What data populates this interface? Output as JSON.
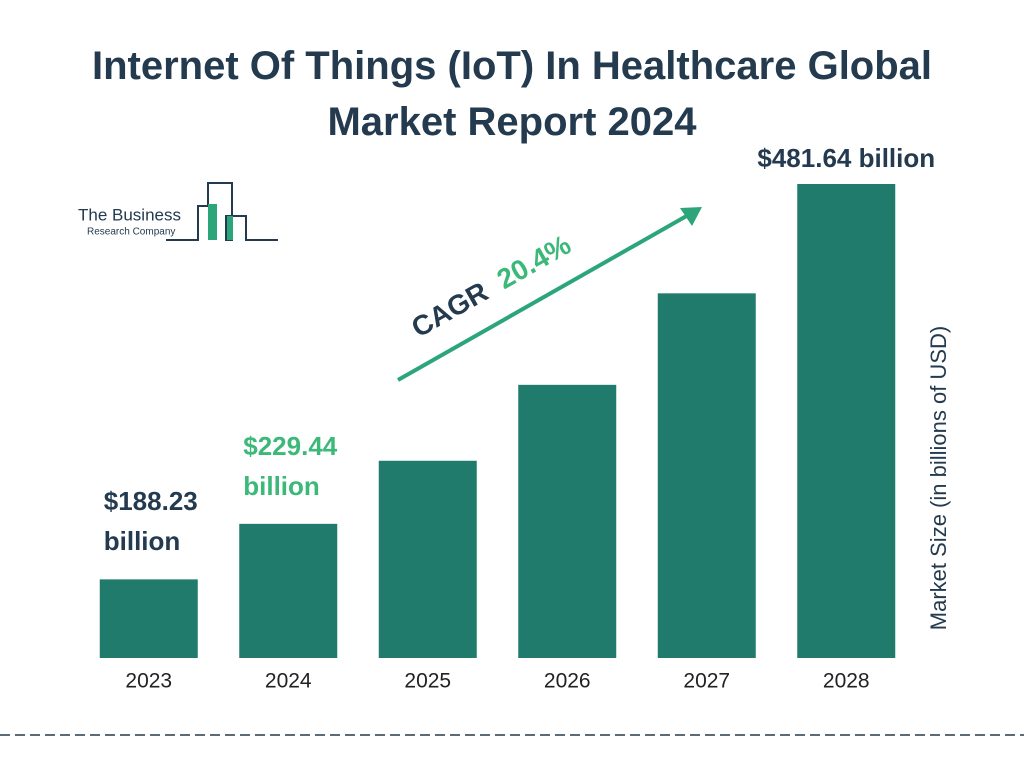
{
  "chart_data": {
    "type": "bar",
    "title": "Internet Of Things (IoT) In Healthcare Global Market Report 2024",
    "logo": {
      "line1": "The Business",
      "line2": "Research Company"
    },
    "y_axis_label": "Market Size (in billions of USD)",
    "annotation": {
      "label": "CAGR",
      "value": "20.4%",
      "label_color": "#233a4f",
      "value_color": "#3cb878",
      "arrow_color": "#2ca57a"
    },
    "categories": [
      "2023",
      "2024",
      "2025",
      "2026",
      "2027",
      "2028"
    ],
    "values": [
      188.23,
      229.44,
      276.25,
      332.6,
      400.5,
      481.64
    ],
    "value_labels": [
      "$188.23 billion",
      "$229.44 billion",
      null,
      null,
      null,
      "$481.64 billion"
    ],
    "value_label_colors": [
      "#233a4f",
      "#3cb878",
      null,
      null,
      null,
      "#233a4f"
    ],
    "color": "#217b6c"
  }
}
